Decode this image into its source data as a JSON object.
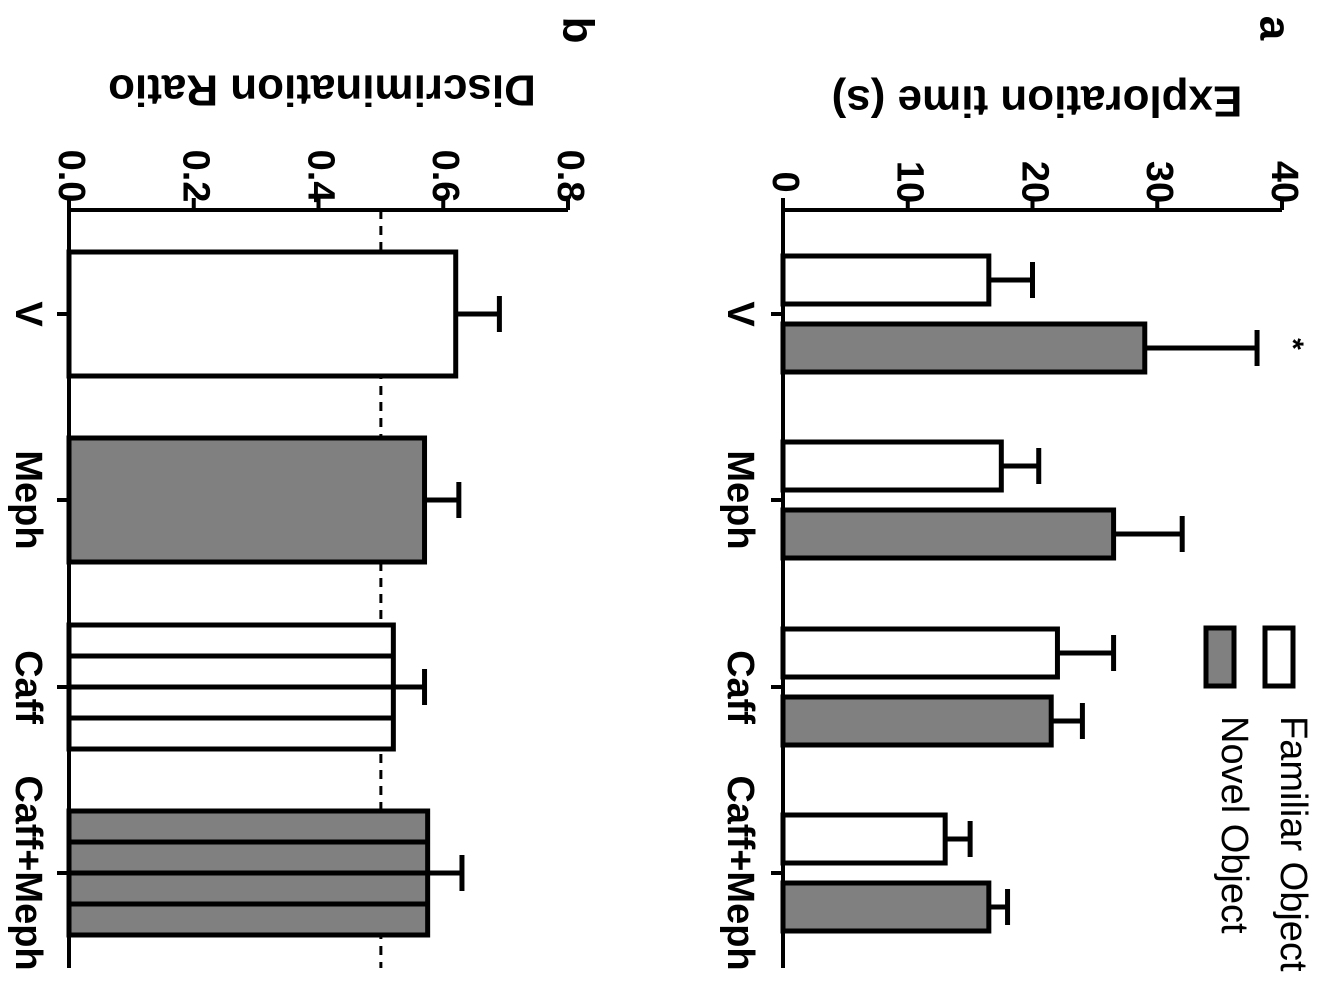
{
  "colors": {
    "familiar": "#ffffff",
    "novel": "#808080",
    "stroke": "#000000",
    "background": "#ffffff"
  },
  "chart_data": [
    {
      "panel": "a",
      "type": "bar",
      "orientation": "rotated 90 degrees clockwise",
      "ylabel": "Exploration time (s)",
      "ylim": [
        0,
        40
      ],
      "yticks": [
        "0",
        "10",
        "20",
        "30",
        "40"
      ],
      "categories": [
        "V",
        "Meph",
        "Caff",
        "Caff+Meph"
      ],
      "series": [
        {
          "name": "Familiar Object",
          "fill": "white",
          "values": [
            16.5,
            17.5,
            22,
            13
          ],
          "errors": [
            3.5,
            3,
            4.5,
            2
          ]
        },
        {
          "name": "Novel Object",
          "fill": "gray",
          "values": [
            29,
            26.5,
            21.5,
            16.5
          ],
          "errors": [
            9,
            5.5,
            2.5,
            1.5
          ]
        }
      ],
      "annotations": [
        {
          "text": "*",
          "category": "V",
          "series": "Novel Object"
        }
      ],
      "legend": "bottom-right",
      "grid": false
    },
    {
      "panel": "b",
      "type": "bar",
      "orientation": "rotated 90 degrees clockwise",
      "ylabel": "Discrimination Ratio",
      "ylim": [
        0,
        0.8
      ],
      "yticks": [
        "0.0",
        "0.2",
        "0.4",
        "0.6",
        "0.8"
      ],
      "categories": [
        "V",
        "Meph",
        "Caff",
        "Caff+Meph"
      ],
      "series": [
        {
          "values": [
            0.62,
            0.57,
            0.52,
            0.575
          ],
          "errors": [
            0.07,
            0.055,
            0.05,
            0.055
          ],
          "styles": [
            "white",
            "gray",
            "white-striped",
            "gray-striped"
          ]
        }
      ],
      "reference_line": 0.5,
      "grid": false
    }
  ]
}
